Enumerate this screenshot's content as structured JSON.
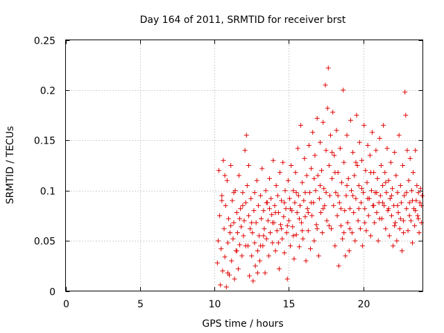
{
  "chart_data": {
    "type": "scatter",
    "title": "Day 164 of 2011, SRMTID for receiver brst",
    "xlabel": "GPS time / hours",
    "ylabel": "SRMTID / TECUs",
    "xlim": [
      0,
      24
    ],
    "ylim": [
      0,
      0.25
    ],
    "xticks": [
      "0",
      "5",
      "10",
      "15",
      "20"
    ],
    "yticks": [
      "0",
      "0.05",
      "0.1",
      "0.15",
      "0.2",
      "0.25"
    ],
    "grid": true,
    "marker": "+",
    "color": "#e00000",
    "points": [
      [
        10.2,
        0.028
      ],
      [
        10.25,
        0.05
      ],
      [
        10.3,
        0.12
      ],
      [
        10.35,
        0.075
      ],
      [
        10.4,
        0.006
      ],
      [
        10.45,
        0.042
      ],
      [
        10.5,
        0.095
      ],
      [
        10.55,
        0.02
      ],
      [
        10.6,
        0.13
      ],
      [
        10.65,
        0.062
      ],
      [
        10.7,
        0.034
      ],
      [
        10.75,
        0.085
      ],
      [
        10.8,
        0.004
      ],
      [
        10.85,
        0.11
      ],
      [
        10.9,
        0.048
      ],
      [
        10.95,
        0.072
      ],
      [
        11.0,
        0.016
      ],
      [
        11.05,
        0.058
      ],
      [
        11.1,
        0.125
      ],
      [
        11.15,
        0.03
      ],
      [
        11.2,
        0.09
      ],
      [
        11.25,
        0.052
      ],
      [
        11.3,
        0.068
      ],
      [
        11.35,
        0.012
      ],
      [
        11.4,
        0.1
      ],
      [
        11.45,
        0.04
      ],
      [
        11.5,
        0.078
      ],
      [
        11.55,
        0.058
      ],
      [
        11.6,
        0.022
      ],
      [
        11.65,
        0.115
      ],
      [
        11.7,
        0.046
      ],
      [
        11.75,
        0.082
      ],
      [
        11.8,
        0.064
      ],
      [
        11.85,
        0.035
      ],
      [
        11.9,
        0.098
      ],
      [
        11.95,
        0.055
      ],
      [
        12.0,
        0.07
      ],
      [
        12.05,
        0.14
      ],
      [
        12.1,
        0.088
      ],
      [
        12.15,
        0.155
      ],
      [
        12.2,
        0.105
      ],
      [
        12.25,
        0.045
      ],
      [
        12.3,
        0.075
      ],
      [
        12.35,
        0.015
      ],
      [
        12.4,
        0.062
      ],
      [
        12.45,
        0.092
      ],
      [
        12.5,
        0.035
      ],
      [
        12.55,
        0.058
      ],
      [
        12.6,
        0.01
      ],
      [
        12.65,
        0.08
      ],
      [
        12.7,
        0.048
      ],
      [
        12.75,
        0.025
      ],
      [
        12.8,
        0.068
      ],
      [
        12.85,
        0.11
      ],
      [
        12.9,
        0.04
      ],
      [
        12.95,
        0.085
      ],
      [
        13.0,
        0.055
      ],
      [
        13.05,
        0.03
      ],
      [
        13.1,
        0.095
      ],
      [
        13.15,
        0.072
      ],
      [
        13.2,
        0.122
      ],
      [
        13.25,
        0.045
      ],
      [
        13.3,
        0.08
      ],
      [
        13.35,
        0.062
      ],
      [
        13.4,
        0.018
      ],
      [
        13.45,
        0.1
      ],
      [
        13.5,
        0.052
      ],
      [
        13.55,
        0.088
      ],
      [
        13.6,
        0.07
      ],
      [
        13.65,
        0.035
      ],
      [
        13.7,
        0.112
      ],
      [
        13.75,
        0.058
      ],
      [
        13.8,
        0.092
      ],
      [
        13.85,
        0.076
      ],
      [
        13.9,
        0.048
      ],
      [
        13.95,
        0.13
      ],
      [
        14.0,
        0.068
      ],
      [
        14.05,
        0.085
      ],
      [
        14.1,
        0.04
      ],
      [
        14.15,
        0.105
      ],
      [
        14.2,
        0.06
      ],
      [
        14.25,
        0.095
      ],
      [
        14.3,
        0.078
      ],
      [
        14.35,
        0.022
      ],
      [
        14.4,
        0.118
      ],
      [
        14.45,
        0.066
      ],
      [
        14.5,
        0.09
      ],
      [
        14.55,
        0.052
      ],
      [
        14.6,
        0.128
      ],
      [
        14.65,
        0.074
      ],
      [
        14.7,
        0.038
      ],
      [
        14.75,
        0.1
      ],
      [
        14.8,
        0.082
      ],
      [
        14.85,
        0.058
      ],
      [
        14.9,
        0.012
      ],
      [
        14.95,
        0.11
      ],
      [
        15.0,
        0.07
      ],
      [
        15.05,
        0.092
      ],
      [
        15.1,
        0.045
      ],
      [
        15.15,
        0.125
      ],
      [
        15.2,
        0.08
      ],
      [
        15.25,
        0.064
      ],
      [
        15.3,
        0.1
      ],
      [
        15.35,
        0.032
      ],
      [
        15.4,
        0.088
      ],
      [
        15.45,
        0.118
      ],
      [
        15.5,
        0.056
      ],
      [
        15.55,
        0.078
      ],
      [
        15.6,
        0.142
      ],
      [
        15.65,
        0.095
      ],
      [
        15.7,
        0.044
      ],
      [
        15.75,
        0.085
      ],
      [
        15.8,
        0.165
      ],
      [
        15.85,
        0.068
      ],
      [
        15.9,
        0.108
      ],
      [
        15.95,
        0.052
      ],
      [
        16.0,
        0.09
      ],
      [
        16.05,
        0.132
      ],
      [
        16.1,
        0.074
      ],
      [
        16.15,
        0.03
      ],
      [
        16.2,
        0.115
      ],
      [
        16.25,
        0.082
      ],
      [
        16.3,
        0.06
      ],
      [
        16.35,
        0.145
      ],
      [
        16.4,
        0.098
      ],
      [
        16.45,
        0.042
      ],
      [
        16.5,
        0.122
      ],
      [
        16.55,
        0.075
      ],
      [
        16.6,
        0.158
      ],
      [
        16.65,
        0.088
      ],
      [
        16.7,
        0.05
      ],
      [
        16.75,
        0.135
      ],
      [
        16.8,
        0.1
      ],
      [
        16.85,
        0.066
      ],
      [
        16.9,
        0.172
      ],
      [
        16.95,
        0.115
      ],
      [
        17.0,
        0.035
      ],
      [
        17.05,
        0.092
      ],
      [
        17.1,
        0.148
      ],
      [
        17.15,
        0.078
      ],
      [
        17.2,
        0.12
      ],
      [
        17.25,
        0.058
      ],
      [
        17.3,
        0.168
      ],
      [
        17.35,
        0.102
      ],
      [
        17.4,
        0.085
      ],
      [
        17.45,
        0.205
      ],
      [
        17.5,
        0.14
      ],
      [
        17.55,
        0.07
      ],
      [
        17.6,
        0.182
      ],
      [
        17.65,
        0.222
      ],
      [
        17.7,
        0.125
      ],
      [
        17.75,
        0.095
      ],
      [
        17.8,
        0.155
      ],
      [
        17.85,
        0.062
      ],
      [
        17.9,
        0.112
      ],
      [
        17.95,
        0.178
      ],
      [
        18.0,
        0.085
      ],
      [
        18.05,
        0.135
      ],
      [
        18.1,
        0.045
      ],
      [
        18.15,
        0.098
      ],
      [
        18.2,
        0.16
      ],
      [
        18.25,
        0.075
      ],
      [
        18.3,
        0.118
      ],
      [
        18.35,
        0.025
      ],
      [
        18.4,
        0.088
      ],
      [
        18.45,
        0.142
      ],
      [
        18.5,
        0.065
      ],
      [
        18.55,
        0.108
      ],
      [
        18.6,
        0.052
      ],
      [
        18.65,
        0.2
      ],
      [
        18.7,
        0.128
      ],
      [
        18.75,
        0.08
      ],
      [
        18.8,
        0.035
      ],
      [
        18.85,
        0.095
      ],
      [
        18.9,
        0.155
      ],
      [
        18.95,
        0.068
      ],
      [
        19.0,
        0.112
      ],
      [
        19.05,
        0.04
      ],
      [
        19.1,
        0.082
      ],
      [
        19.15,
        0.17
      ],
      [
        19.2,
        0.1
      ],
      [
        19.25,
        0.058
      ],
      [
        19.3,
        0.138
      ],
      [
        19.35,
        0.078
      ],
      [
        19.4,
        0.115
      ],
      [
        19.45,
        0.05
      ],
      [
        19.5,
        0.092
      ],
      [
        19.55,
        0.175
      ],
      [
        19.6,
        0.125
      ],
      [
        19.65,
        0.07
      ],
      [
        19.7,
        0.105
      ],
      [
        19.75,
        0.148
      ],
      [
        19.8,
        0.062
      ],
      [
        19.85,
        0.088
      ],
      [
        19.9,
        0.13
      ],
      [
        19.95,
        0.045
      ],
      [
        20.0,
        0.098
      ],
      [
        20.05,
        0.165
      ],
      [
        20.1,
        0.082
      ],
      [
        20.15,
        0.12
      ],
      [
        20.2,
        0.06
      ],
      [
        20.25,
        0.108
      ],
      [
        20.3,
        0.145
      ],
      [
        20.35,
        0.075
      ],
      [
        20.4,
        0.092
      ],
      [
        20.45,
        0.135
      ],
      [
        20.5,
        0.055
      ],
      [
        20.55,
        0.1
      ],
      [
        20.6,
        0.158
      ],
      [
        20.65,
        0.085
      ],
      [
        20.7,
        0.118
      ],
      [
        20.75,
        0.068
      ],
      [
        20.8,
        0.098
      ],
      [
        20.85,
        0.14
      ],
      [
        20.9,
        0.078
      ],
      [
        20.95,
        0.112
      ],
      [
        21.0,
        0.05
      ],
      [
        21.05,
        0.088
      ],
      [
        21.1,
        0.152
      ],
      [
        21.15,
        0.095
      ],
      [
        21.2,
        0.125
      ],
      [
        21.25,
        0.072
      ],
      [
        21.3,
        0.105
      ],
      [
        21.35,
        0.165
      ],
      [
        21.4,
        0.085
      ],
      [
        21.45,
        0.118
      ],
      [
        21.5,
        0.062
      ],
      [
        21.55,
        0.098
      ],
      [
        21.6,
        0.142
      ],
      [
        21.65,
        0.08
      ],
      [
        21.7,
        0.11
      ],
      [
        21.75,
        0.055
      ],
      [
        21.8,
        0.092
      ],
      [
        21.85,
        0.128
      ],
      [
        21.9,
        0.075
      ],
      [
        21.95,
        0.102
      ],
      [
        22.0,
        0.045
      ],
      [
        22.05,
        0.085
      ],
      [
        22.1,
        0.138
      ],
      [
        22.15,
        0.068
      ],
      [
        22.2,
        0.115
      ],
      [
        22.25,
        0.05
      ],
      [
        22.3,
        0.098
      ],
      [
        22.35,
        0.078
      ],
      [
        22.4,
        0.155
      ],
      [
        22.45,
        0.062
      ],
      [
        22.5,
        0.105
      ],
      [
        22.55,
        0.088
      ],
      [
        22.6,
        0.04
      ],
      [
        22.65,
        0.125
      ],
      [
        22.7,
        0.07
      ],
      [
        22.75,
        0.095
      ],
      [
        22.8,
        0.198
      ],
      [
        22.85,
        0.175
      ],
      [
        22.9,
        0.082
      ],
      [
        22.95,
        0.14
      ],
      [
        23.0,
        0.06
      ],
      [
        23.05,
        0.11
      ],
      [
        23.1,
        0.088
      ],
      [
        23.15,
        0.132
      ],
      [
        23.2,
        0.07
      ],
      [
        23.25,
        0.1
      ],
      [
        23.3,
        0.048
      ],
      [
        23.35,
        0.118
      ],
      [
        23.4,
        0.082
      ],
      [
        23.45,
        0.065
      ],
      [
        23.5,
        0.14
      ],
      [
        23.55,
        0.09
      ],
      [
        23.6,
        0.105
      ],
      [
        23.65,
        0.075
      ],
      [
        23.7,
        0.098
      ],
      [
        23.75,
        0.058
      ],
      [
        23.8,
        0.088
      ],
      [
        23.85,
        0.102
      ],
      [
        23.9,
        0.068
      ],
      [
        23.95,
        0.095
      ],
      [
        10.5,
        0.09
      ],
      [
        10.7,
        0.115
      ],
      [
        10.9,
        0.018
      ],
      [
        11.1,
        0.065
      ],
      [
        11.3,
        0.098
      ],
      [
        11.5,
        0.04
      ],
      [
        11.7,
        0.072
      ],
      [
        11.9,
        0.085
      ],
      [
        12.1,
        0.045
      ],
      [
        12.3,
        0.125
      ],
      [
        12.5,
        0.068
      ],
      [
        12.7,
        0.098
      ],
      [
        12.9,
        0.018
      ],
      [
        13.1,
        0.045
      ],
      [
        13.3,
        0.055
      ],
      [
        13.5,
        0.088
      ],
      [
        13.7,
        0.082
      ],
      [
        13.9,
        0.068
      ],
      [
        14.1,
        0.078
      ],
      [
        14.3,
        0.048
      ],
      [
        14.5,
        0.062
      ],
      [
        14.7,
        0.088
      ],
      [
        14.9,
        0.065
      ],
      [
        15.1,
        0.082
      ],
      [
        15.3,
        0.055
      ],
      [
        15.5,
        0.098
      ],
      [
        15.7,
        0.072
      ],
      [
        15.9,
        0.06
      ],
      [
        16.1,
        0.098
      ],
      [
        16.3,
        0.078
      ],
      [
        16.5,
        0.088
      ],
      [
        16.7,
        0.112
      ],
      [
        16.9,
        0.062
      ],
      [
        17.1,
        0.105
      ],
      [
        17.3,
        0.082
      ],
      [
        17.5,
        0.098
      ],
      [
        17.7,
        0.065
      ],
      [
        17.9,
        0.138
      ],
      [
        18.1,
        0.118
      ],
      [
        18.3,
        0.095
      ],
      [
        18.5,
        0.082
      ],
      [
        18.7,
        0.058
      ],
      [
        18.9,
        0.105
      ],
      [
        19.1,
        0.062
      ],
      [
        19.3,
        0.095
      ],
      [
        19.5,
        0.128
      ],
      [
        19.7,
        0.082
      ],
      [
        19.9,
        0.102
      ],
      [
        20.1,
        0.068
      ],
      [
        20.3,
        0.092
      ],
      [
        20.5,
        0.118
      ],
      [
        20.7,
        0.085
      ],
      [
        20.9,
        0.098
      ],
      [
        21.1,
        0.072
      ],
      [
        21.3,
        0.088
      ],
      [
        21.5,
        0.108
      ],
      [
        21.7,
        0.082
      ],
      [
        21.9,
        0.095
      ],
      [
        22.1,
        0.065
      ],
      [
        22.3,
        0.085
      ],
      [
        22.5,
        0.072
      ],
      [
        22.7,
        0.058
      ],
      [
        22.9,
        0.098
      ],
      [
        23.1,
        0.075
      ],
      [
        23.3,
        0.09
      ],
      [
        23.5,
        0.08
      ],
      [
        23.7,
        0.072
      ],
      [
        23.9,
        0.085
      ]
    ]
  }
}
